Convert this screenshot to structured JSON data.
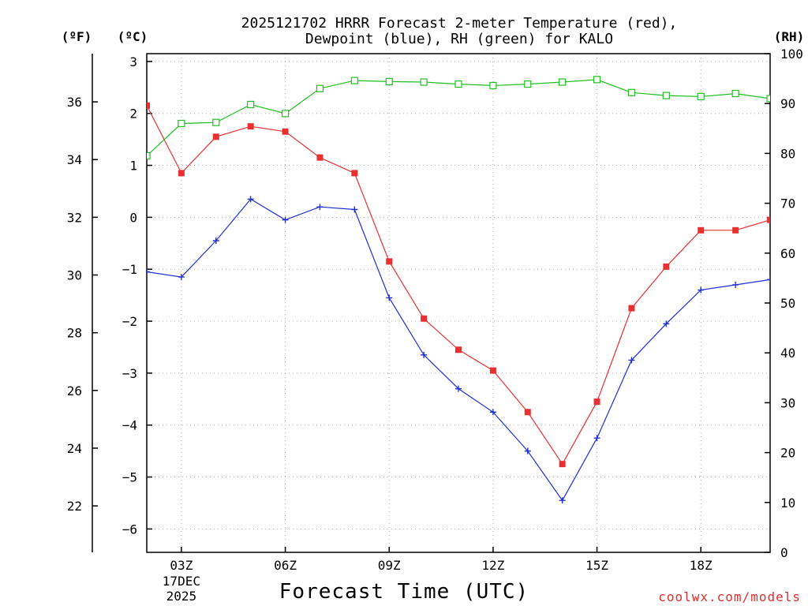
{
  "chart_data": {
    "type": "line",
    "title": "2025121702 HRRR Forecast 2-meter Temperature (red),",
    "title_line2": "Dewpoint (blue), RH (green) for KALO",
    "xlabel": "Forecast Time (UTC)",
    "credit": "coolwx.com/models",
    "units": {
      "fahrenheit": "(ºF)",
      "celsius": "(ºC)",
      "rh": "(RH)"
    },
    "x_ticks": [
      {
        "hour": 3,
        "label": "03Z",
        "sub1": "17DEC",
        "sub2": "2025"
      },
      {
        "hour": 6,
        "label": "06Z",
        "sub1": "",
        "sub2": ""
      },
      {
        "hour": 9,
        "label": "09Z",
        "sub1": "",
        "sub2": ""
      },
      {
        "hour": 12,
        "label": "12Z",
        "sub1": "",
        "sub2": ""
      },
      {
        "hour": 15,
        "label": "15Z",
        "sub1": "",
        "sub2": ""
      },
      {
        "hour": 18,
        "label": "18Z",
        "sub1": "",
        "sub2": ""
      }
    ],
    "xlim": [
      2,
      20
    ],
    "y_celsius": {
      "lim": [
        -6.45,
        3.15
      ],
      "ticks": [
        "3",
        "2",
        "1",
        "0",
        "−1",
        "−2",
        "−3",
        "−4",
        "−5",
        "−6"
      ],
      "tick_values": [
        3,
        2,
        1,
        0,
        -1,
        -2,
        -3,
        -4,
        -5,
        -6
      ]
    },
    "y_fahrenheit": {
      "ticks": [
        "36",
        "34",
        "32",
        "30",
        "28",
        "26",
        "24",
        "22"
      ],
      "tick_values": [
        36,
        34,
        32,
        30,
        28,
        26,
        24,
        22
      ]
    },
    "y_rh": {
      "lim": [
        0,
        100
      ],
      "ticks": [
        "100",
        "90",
        "80",
        "70",
        "60",
        "50",
        "40",
        "30",
        "20",
        "10",
        "0"
      ],
      "tick_values": [
        100,
        90,
        80,
        70,
        60,
        50,
        40,
        30,
        20,
        10,
        0
      ]
    },
    "x": [
      2,
      3,
      4,
      5,
      6,
      7,
      8,
      9,
      10,
      11,
      12,
      13,
      14,
      15,
      16,
      17,
      18,
      19,
      20
    ],
    "series": [
      {
        "name": "Temperature",
        "axis": "celsius",
        "color": "#e83030",
        "marker": "filled-square",
        "values": [
          2.15,
          0.85,
          1.55,
          1.75,
          1.65,
          1.15,
          0.85,
          -0.85,
          -1.95,
          -2.55,
          -2.95,
          -3.75,
          -4.75,
          -3.55,
          -1.75,
          -0.95,
          -0.25,
          -0.25,
          -0.05
        ]
      },
      {
        "name": "Dewpoint",
        "axis": "celsius",
        "color": "#2030d8",
        "marker": "plus",
        "values": [
          -1.05,
          -1.15,
          -0.45,
          0.35,
          -0.05,
          0.2,
          0.15,
          -1.55,
          -2.65,
          -3.3,
          -3.75,
          -4.5,
          -5.45,
          -4.25,
          -2.75,
          -2.05,
          -1.4,
          -1.3,
          -1.2
        ]
      },
      {
        "name": "RH",
        "axis": "rh",
        "color": "#20c020",
        "marker": "open-square",
        "values": [
          79.5,
          86,
          86.2,
          89.8,
          88,
          93,
          94.6,
          94.4,
          94.3,
          93.9,
          93.6,
          93.9,
          94.3,
          94.8,
          92.2,
          91.6,
          91.4,
          92,
          91
        ]
      }
    ]
  }
}
